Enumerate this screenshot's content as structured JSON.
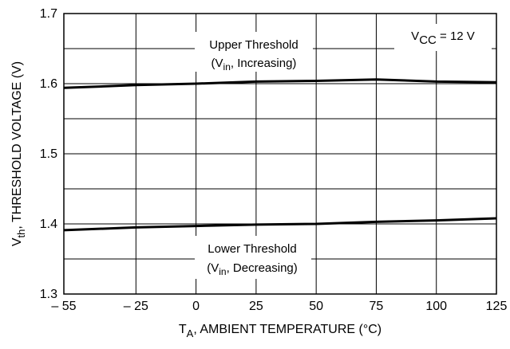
{
  "chart_data": {
    "type": "line",
    "x": [
      -55,
      -25,
      0,
      25,
      50,
      75,
      100,
      125
    ],
    "xlim": [
      -55,
      125
    ],
    "ylim": [
      1.3,
      1.7
    ],
    "xticks": [
      -55,
      -25,
      0,
      25,
      50,
      75,
      100,
      125
    ],
    "xtick_labels": [
      "– 55",
      "– 25",
      "0",
      "25",
      "50",
      "75",
      "100",
      "125"
    ],
    "yticks": [
      1.3,
      1.4,
      1.5,
      1.6,
      1.7
    ],
    "ytick_labels": [
      "1.3",
      "1.4",
      "1.5",
      "1.6",
      "1.7"
    ],
    "grid": true,
    "xlabel": {
      "main": "T",
      "sub": "A",
      "rest": ", AMBIENT TEMPERATURE (°C)"
    },
    "ylabel": {
      "main": "V",
      "sub": "th",
      "rest": ", THRESHOLD VOLTAGE (V)"
    },
    "condition": {
      "main": "V",
      "sub": "CC",
      "rest": " = 12 V"
    },
    "series": [
      {
        "name": "Upper Threshold",
        "note": {
          "line1": "Upper Threshold",
          "pre": "(V",
          "sub": "in",
          "post": ", Increasing)"
        },
        "values": [
          1.594,
          1.598,
          1.6,
          1.603,
          1.604,
          1.606,
          1.603,
          1.602
        ]
      },
      {
        "name": "Lower Threshold",
        "note": {
          "line1": "Lower Threshold",
          "pre": "(V",
          "sub": "in",
          "post": ", Decreasing)"
        },
        "values": [
          1.391,
          1.395,
          1.397,
          1.399,
          1.4,
          1.403,
          1.405,
          1.408
        ]
      }
    ]
  }
}
